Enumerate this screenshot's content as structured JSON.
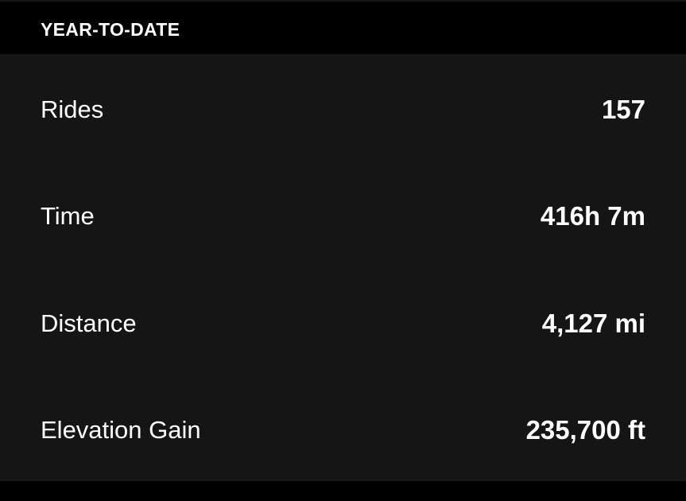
{
  "header": {
    "title": "YEAR-TO-DATE"
  },
  "stats": [
    {
      "label": "Rides",
      "value": "157"
    },
    {
      "label": "Time",
      "value": "416h 7m"
    },
    {
      "label": "Distance",
      "value": "4,127 mi"
    },
    {
      "label": "Elevation Gain",
      "value": "235,700 ft"
    }
  ]
}
